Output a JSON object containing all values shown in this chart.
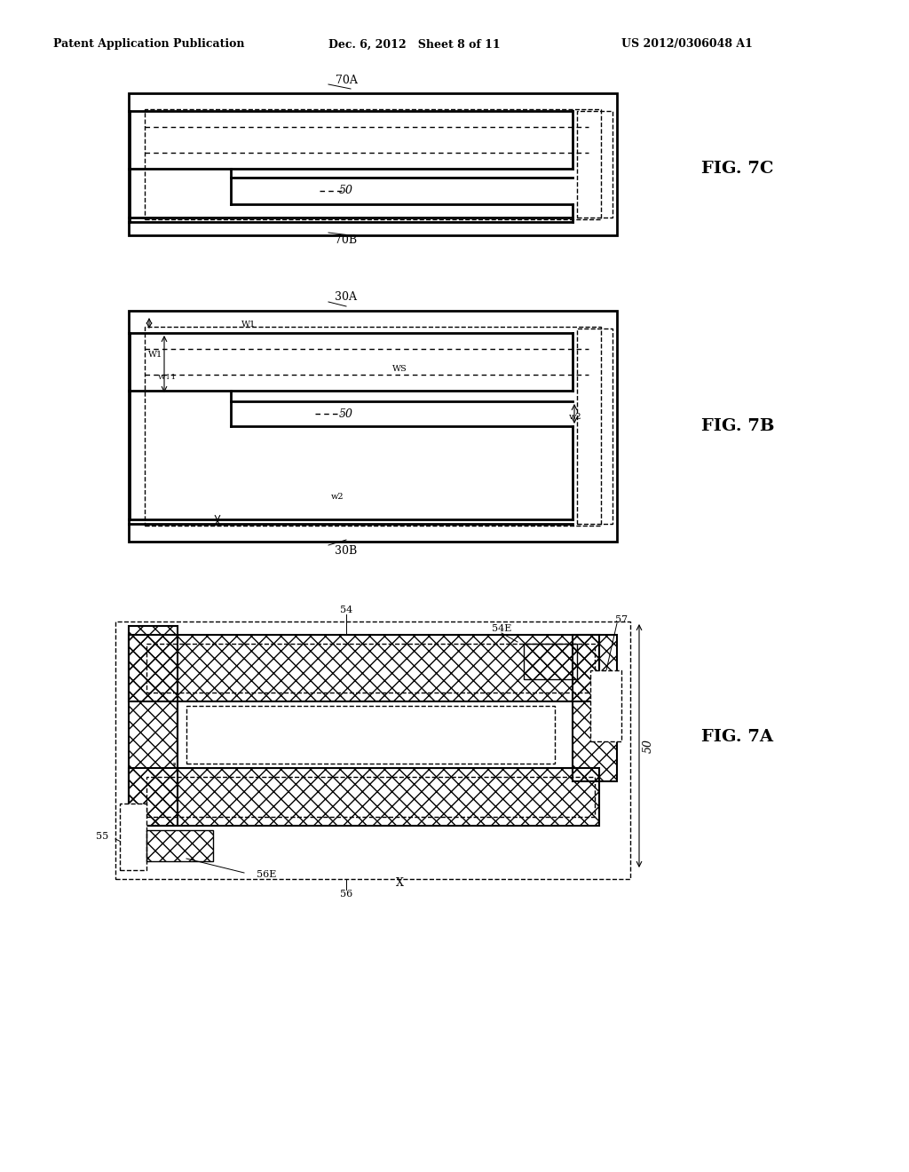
{
  "header_left": "Patent Application Publication",
  "header_mid": "Dec. 6, 2012   Sheet 8 of 11",
  "header_right": "US 2012/0306048 A1",
  "bg_color": "#ffffff",
  "line_color": "#000000",
  "hatch_color": "#000000",
  "fig7c_label": "FIG. 7C",
  "fig7b_label": "FIG. 7B",
  "fig7a_label": "FIG. 7A"
}
